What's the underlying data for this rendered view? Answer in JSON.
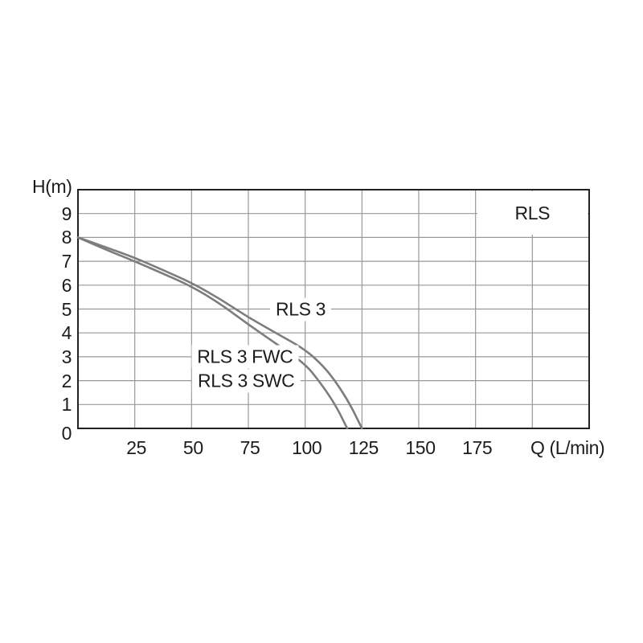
{
  "page": {
    "background": "#ffffff"
  },
  "chart": {
    "y_axis_label": "H(m)",
    "x_axis_label": "Q (L/min)",
    "title_box": "RLS",
    "x_tick_labels": [
      "25",
      "50",
      "75",
      "100",
      "125",
      "150",
      "175"
    ],
    "x_tick_values": [
      25,
      50,
      75,
      100,
      125,
      150,
      175
    ],
    "y_tick_labels": [
      "9",
      "8",
      "7",
      "6",
      "5",
      "4",
      "3",
      "2",
      "1",
      "0"
    ],
    "y_tick_values": [
      9,
      8,
      7,
      6,
      5,
      4,
      3,
      2,
      1,
      0
    ],
    "curve_labels": [
      {
        "text": "RLS 3",
        "q": 98,
        "h": 5
      },
      {
        "text": "RLS 3 FWC",
        "q": 73.5,
        "h": 3
      },
      {
        "text": "RLS 3 SWC",
        "q": 74,
        "h": 2
      }
    ],
    "colors": {
      "curve": "#7d7d7d",
      "grid": "#999999",
      "border": "#222222",
      "text": "#1c1c1c"
    }
  },
  "chart_data": {
    "type": "line",
    "title": "",
    "xlabel": "Q (L/min)",
    "ylabel": "H(m)",
    "xlim": [
      0,
      225
    ],
    "ylim": [
      0,
      10
    ],
    "x_grid_step": 25,
    "y_grid_step": 1,
    "x_labeled_ticks": [
      25,
      50,
      75,
      100,
      125,
      150,
      175
    ],
    "y_labeled_ticks": [
      0,
      1,
      2,
      3,
      4,
      5,
      6,
      7,
      8,
      9
    ],
    "grid": true,
    "legend_position": "labels-on-chart",
    "series": [
      {
        "name": "RLS 3",
        "points": [
          [
            0,
            8
          ],
          [
            12,
            7.6
          ],
          [
            25,
            7.15
          ],
          [
            37,
            6.65
          ],
          [
            50,
            6.1
          ],
          [
            63,
            5.4
          ],
          [
            75,
            4.65
          ],
          [
            88,
            3.95
          ],
          [
            100,
            3.3
          ],
          [
            107,
            2.7
          ],
          [
            112,
            2.15
          ],
          [
            119,
            1.15
          ],
          [
            125,
            0
          ]
        ]
      },
      {
        "name": "RLS 3 FWC / RLS 3 SWC",
        "points": [
          [
            0,
            8
          ],
          [
            12,
            7.5
          ],
          [
            25,
            7.0
          ],
          [
            37,
            6.5
          ],
          [
            50,
            5.95
          ],
          [
            63,
            5.2
          ],
          [
            75,
            4.35
          ],
          [
            88,
            3.5
          ],
          [
            100,
            2.7
          ],
          [
            106,
            2.0
          ],
          [
            113,
            1.05
          ],
          [
            118.5,
            0
          ]
        ]
      }
    ]
  }
}
